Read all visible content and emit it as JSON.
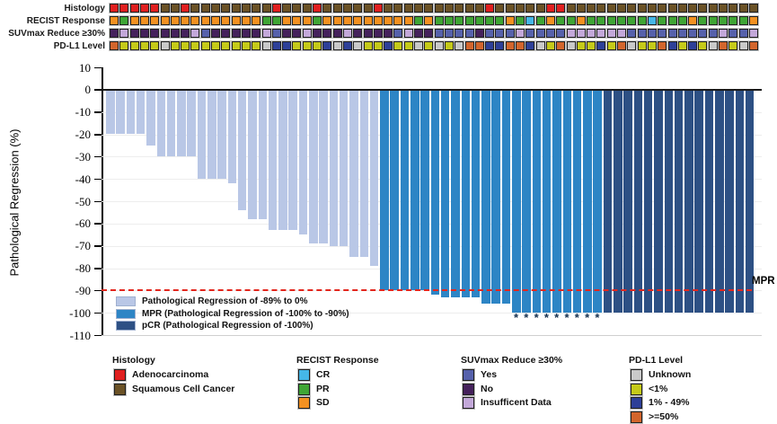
{
  "annotation_tracks": {
    "rows": [
      {
        "id": "histology",
        "label": "Histology",
        "codes": [
          "R",
          "R",
          "R",
          "R",
          "R",
          "S",
          "S",
          "R",
          "S",
          "S",
          "S",
          "S",
          "S",
          "S",
          "S",
          "S",
          "R",
          "S",
          "S",
          "S",
          "R",
          "S",
          "S",
          "S",
          "S",
          "S",
          "R",
          "S",
          "S",
          "S",
          "S",
          "S",
          "S",
          "S",
          "S",
          "S",
          "S",
          "R",
          "S",
          "S",
          "S",
          "S",
          "S",
          "R",
          "R",
          "S",
          "S",
          "S",
          "S",
          "S",
          "S",
          "S",
          "S",
          "S",
          "S",
          "S",
          "S",
          "S",
          "S",
          "S",
          "S",
          "S",
          "S",
          "S"
        ]
      },
      {
        "id": "recist",
        "label": "RECIST Response",
        "codes": [
          "S",
          "P",
          "S",
          "S",
          "S",
          "S",
          "S",
          "S",
          "S",
          "S",
          "S",
          "S",
          "S",
          "S",
          "S",
          "P",
          "P",
          "S",
          "S",
          "S",
          "P",
          "S",
          "S",
          "S",
          "S",
          "S",
          "S",
          "S",
          "S",
          "S",
          "P",
          "S",
          "P",
          "P",
          "P",
          "P",
          "P",
          "P",
          "P",
          "S",
          "P",
          "C",
          "P",
          "S",
          "P",
          "P",
          "S",
          "P",
          "P",
          "P",
          "P",
          "P",
          "P",
          "C",
          "P",
          "P",
          "P",
          "S",
          "P",
          "P",
          "P",
          "P",
          "P",
          "S"
        ]
      },
      {
        "id": "suvmax",
        "label": "SUVmax Reduce ≥30%",
        "codes": [
          "N",
          "I",
          "N",
          "N",
          "N",
          "N",
          "N",
          "N",
          "I",
          "Y",
          "N",
          "N",
          "N",
          "N",
          "N",
          "I",
          "Y",
          "N",
          "N",
          "I",
          "N",
          "N",
          "N",
          "I",
          "N",
          "N",
          "N",
          "N",
          "Y",
          "I",
          "N",
          "N",
          "Y",
          "Y",
          "Y",
          "Y",
          "N",
          "Y",
          "Y",
          "Y",
          "I",
          "Y",
          "Y",
          "Y",
          "Y",
          "I",
          "I",
          "I",
          "I",
          "I",
          "I",
          "Y",
          "Y",
          "Y",
          "Y",
          "Y",
          "Y",
          "Y",
          "Y",
          "Y",
          "I",
          "Y",
          "Y",
          "I"
        ]
      },
      {
        "id": "pdl1",
        "label": "PD-L1 Level",
        "codes": [
          "H",
          "L",
          "L",
          "L",
          "L",
          "U",
          "L",
          "L",
          "L",
          "L",
          "L",
          "L",
          "L",
          "L",
          "L",
          "U",
          "M",
          "M",
          "L",
          "L",
          "L",
          "M",
          "U",
          "M",
          "U",
          "L",
          "L",
          "M",
          "L",
          "L",
          "U",
          "L",
          "U",
          "L",
          "U",
          "H",
          "H",
          "M",
          "M",
          "H",
          "H",
          "M",
          "U",
          "L",
          "H",
          "U",
          "L",
          "L",
          "M",
          "L",
          "H",
          "U",
          "L",
          "L",
          "H",
          "M",
          "L",
          "M",
          "L",
          "U",
          "H",
          "L",
          "U",
          "H"
        ]
      }
    ],
    "palettes": {
      "histology": {
        "R": "#e01f1f",
        "S": "#6b5226"
      },
      "recist": {
        "S": "#f39121",
        "P": "#3fa535",
        "C": "#45b7e8"
      },
      "suvmax": {
        "Y": "#5661ab",
        "N": "#45215c",
        "I": "#c3a8d9"
      },
      "pdl1": {
        "U": "#c9c9c9",
        "L": "#c5ca19",
        "M": "#2d3f98",
        "H": "#d2652c"
      }
    }
  },
  "chart_data": {
    "type": "bar",
    "title": "",
    "xlabel": "",
    "ylabel": "Pathological Regression (%)",
    "ylim": [
      -110,
      10
    ],
    "yticks": [
      10,
      0,
      -10,
      -20,
      -30,
      -40,
      -50,
      -60,
      -70,
      -80,
      -90,
      -100,
      -110
    ],
    "grid": true,
    "values": [
      -20,
      -20,
      -20,
      -20,
      -25,
      -30,
      -30,
      -30,
      -30,
      -40,
      -40,
      -40,
      -42,
      -54,
      -58,
      -58,
      -63,
      -63,
      -63,
      -65,
      -69,
      -69,
      -70,
      -70,
      -75,
      -75,
      -79,
      -90,
      -90,
      -90,
      -90,
      -90,
      -92,
      -93,
      -93,
      -93,
      -93,
      -96,
      -96,
      -96,
      -100,
      -100,
      -100,
      -100,
      -100,
      -100,
      -100,
      -100,
      -100,
      -100,
      -100,
      -100,
      -100,
      -100,
      -100,
      -100,
      -100,
      -100,
      -100,
      -100,
      -100,
      -100,
      -100,
      -100
    ],
    "groups": [
      "L",
      "L",
      "L",
      "L",
      "L",
      "L",
      "L",
      "L",
      "L",
      "L",
      "L",
      "L",
      "L",
      "L",
      "L",
      "L",
      "L",
      "L",
      "L",
      "L",
      "L",
      "L",
      "L",
      "L",
      "L",
      "L",
      "L",
      "M",
      "M",
      "M",
      "M",
      "M",
      "M",
      "M",
      "M",
      "M",
      "M",
      "M",
      "M",
      "M",
      "M",
      "M",
      "M",
      "M",
      "M",
      "M",
      "M",
      "M",
      "M",
      "P",
      "P",
      "P",
      "P",
      "P",
      "P",
      "P",
      "P",
      "P",
      "P",
      "P",
      "P",
      "P",
      "P",
      "P"
    ],
    "asterisk_bar_indices": [
      40,
      41,
      42,
      43,
      44,
      45,
      46,
      47,
      48
    ],
    "reference_line": {
      "value": -90,
      "label": "MPR",
      "color": "#e3261d"
    },
    "group_colors": {
      "L": "#b9c7e6",
      "M": "#2d85c5",
      "P": "#2d5084"
    }
  },
  "inner_legend": [
    {
      "code": "L",
      "label": "Pathological Regression of -89% to 0%"
    },
    {
      "code": "M",
      "label": "MPR (Pathological Regression of -100% to -90%)"
    },
    {
      "code": "P",
      "label": "pCR (Pathological Regression of -100%)"
    }
  ],
  "bottom_legend": [
    {
      "header": "Histology",
      "items": [
        {
          "color": "#e01f1f",
          "label": "Adenocarcinoma"
        },
        {
          "color": "#6b5226",
          "label": "Squamous Cell Cancer"
        }
      ]
    },
    {
      "header": "RECIST Response",
      "items": [
        {
          "color": "#45b7e8",
          "label": "CR"
        },
        {
          "color": "#3fa535",
          "label": "PR"
        },
        {
          "color": "#f39121",
          "label": "SD"
        }
      ]
    },
    {
      "header": "SUVmax Reduce ≥30%",
      "items": [
        {
          "color": "#5661ab",
          "label": "Yes"
        },
        {
          "color": "#45215c",
          "label": "No"
        },
        {
          "color": "#c3a8d9",
          "label": "Insufficent Data"
        }
      ]
    },
    {
      "header": "PD-L1 Level",
      "items": [
        {
          "color": "#c9c9c9",
          "label": "Unknown"
        },
        {
          "color": "#c5ca19",
          "label": "<1%"
        },
        {
          "color": "#2d3f98",
          "label": "1% - 49%"
        },
        {
          "color": "#d2652c",
          "label": ">=50%"
        }
      ]
    }
  ]
}
